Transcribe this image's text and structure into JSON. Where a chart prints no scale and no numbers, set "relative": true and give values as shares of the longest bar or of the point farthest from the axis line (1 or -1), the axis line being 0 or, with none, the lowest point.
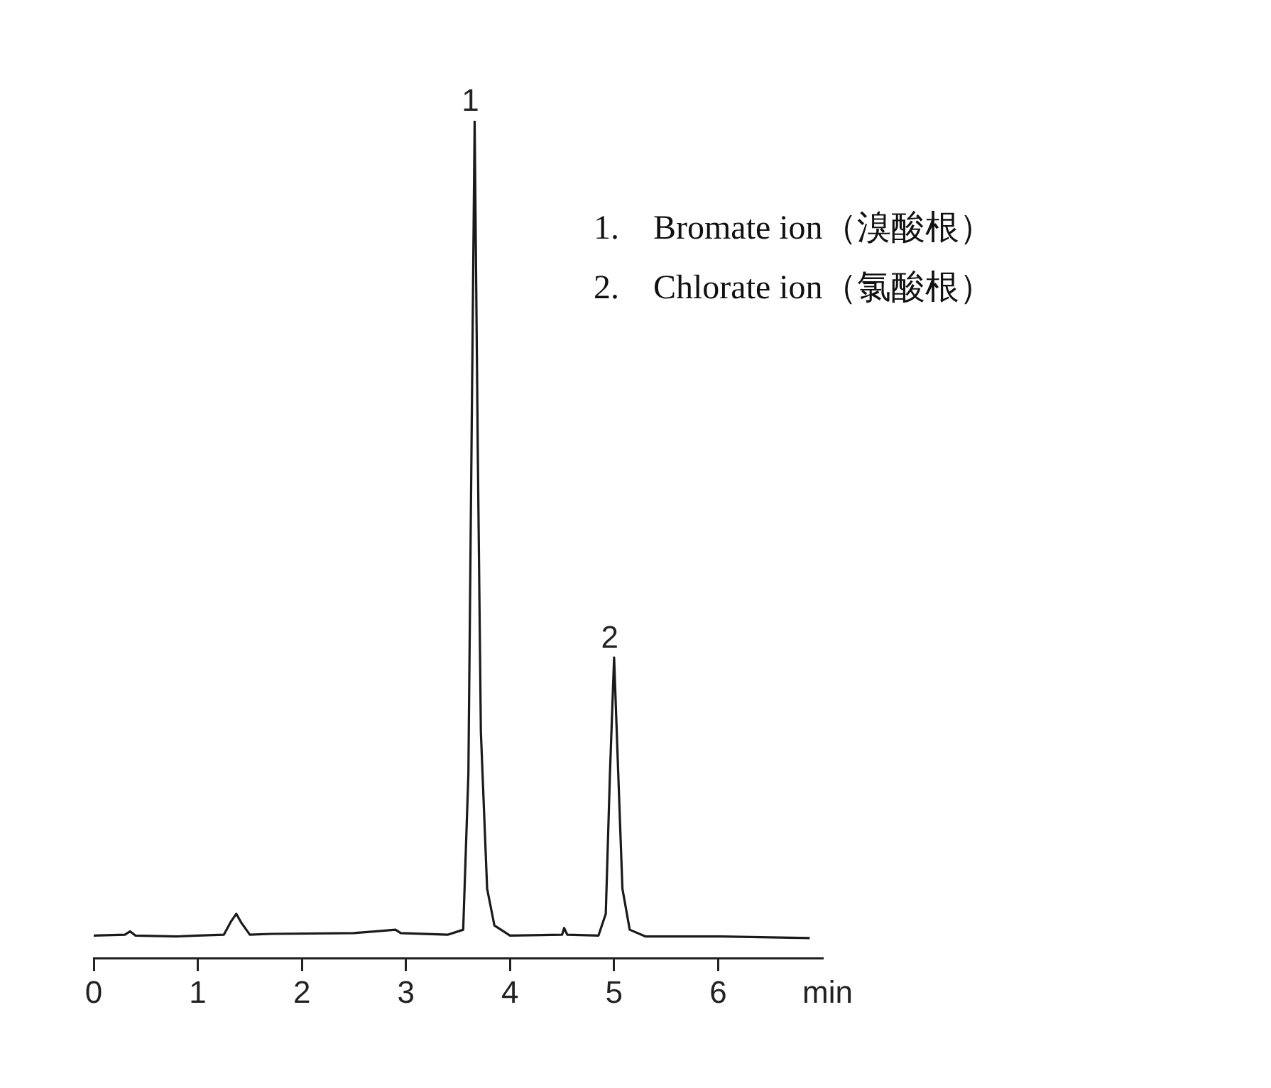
{
  "chart_data": {
    "type": "line",
    "relative": true,
    "xlabel": "min",
    "xlim": [
      0,
      7
    ],
    "xticks": [
      0,
      1,
      2,
      3,
      4,
      5,
      6
    ],
    "grid": false,
    "legend": false,
    "marker": "none",
    "line_style": "solid",
    "series": [
      {
        "color": "#1a1a1a",
        "x": [
          0,
          0.3,
          0.35,
          0.4,
          0.8,
          1.0,
          1.25,
          1.32,
          1.37,
          1.42,
          1.5,
          1.7,
          2.5,
          2.9,
          2.95,
          3.4,
          3.55,
          3.6,
          3.63,
          3.66,
          3.69,
          3.72,
          3.78,
          3.85,
          4.0,
          4.5,
          4.52,
          4.55,
          4.85,
          4.92,
          4.96,
          5.0,
          5.04,
          5.08,
          5.15,
          5.3,
          6.0,
          6.88
        ],
        "values": [
          0.027,
          0.028,
          0.032,
          0.027,
          0.026,
          0.027,
          0.028,
          0.044,
          0.053,
          0.042,
          0.028,
          0.029,
          0.03,
          0.034,
          0.03,
          0.028,
          0.034,
          0.22,
          0.61,
          1,
          0.61,
          0.27,
          0.083,
          0.039,
          0.027,
          0.028,
          0.036,
          0.028,
          0.027,
          0.053,
          0.22,
          0.359,
          0.22,
          0.083,
          0.034,
          0.026,
          0.026,
          0.024
        ]
      }
    ],
    "annotations": [
      {
        "text": "1",
        "x": 3.66,
        "y": 1
      },
      {
        "text": "2",
        "x": 5.0,
        "y": 0.359
      },
      "1. Bromate ion（溴酸根）",
      "2. Chlorate ion（氯酸根）"
    ]
  }
}
